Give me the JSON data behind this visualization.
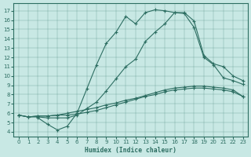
{
  "xlabel": "Humidex (Indice chaleur)",
  "bg_color": "#c8e8e4",
  "line_color": "#2d6e62",
  "grid_color": "#a0c8c0",
  "xlim": [
    -0.5,
    23.5
  ],
  "ylim": [
    3.5,
    17.8
  ],
  "xticks": [
    0,
    1,
    2,
    3,
    4,
    5,
    6,
    7,
    8,
    9,
    10,
    11,
    12,
    13,
    14,
    15,
    16,
    17,
    18,
    19,
    20,
    21,
    22,
    23
  ],
  "yticks": [
    4,
    5,
    6,
    7,
    8,
    9,
    10,
    11,
    12,
    13,
    14,
    15,
    16,
    17
  ],
  "curve_upper_x": [
    2,
    3,
    4,
    5,
    6,
    7,
    8,
    9,
    10,
    11,
    12,
    13,
    14,
    15,
    16,
    17,
    18,
    19,
    20,
    21,
    22,
    23
  ],
  "curve_upper_y": [
    5.5,
    4.8,
    4.2,
    4.6,
    6.0,
    8.6,
    11.2,
    13.5,
    14.7,
    16.4,
    15.6,
    16.8,
    17.1,
    17.0,
    16.8,
    16.7,
    15.2,
    12.0,
    11.2,
    9.8,
    9.5,
    9.1
  ],
  "curve_mid_x": [
    0,
    1,
    2,
    3,
    4,
    5,
    6,
    7,
    8,
    9,
    10,
    11,
    12,
    13,
    14,
    15,
    16,
    17,
    18,
    19,
    20,
    21,
    22,
    23
  ],
  "curve_mid_y": [
    5.8,
    5.6,
    5.6,
    5.5,
    5.5,
    5.5,
    5.8,
    6.5,
    7.2,
    8.4,
    9.7,
    11.0,
    11.8,
    13.7,
    14.7,
    15.6,
    16.8,
    16.8,
    15.9,
    12.2,
    11.3,
    11.0,
    10.0,
    9.5
  ],
  "curve_low1_x": [
    0,
    1,
    2,
    3,
    4,
    5,
    6,
    7,
    8,
    9,
    10,
    11,
    12,
    13,
    14,
    15,
    16,
    17,
    18,
    19,
    20,
    21,
    22,
    23
  ],
  "curve_low1_y": [
    5.8,
    5.6,
    5.7,
    5.7,
    5.8,
    6.0,
    6.2,
    6.4,
    6.6,
    6.9,
    7.1,
    7.4,
    7.6,
    7.9,
    8.2,
    8.5,
    8.7,
    8.8,
    8.9,
    8.9,
    8.8,
    8.7,
    8.5,
    7.8
  ],
  "curve_low2_x": [
    0,
    1,
    2,
    3,
    4,
    5,
    6,
    7,
    8,
    9,
    10,
    11,
    12,
    13,
    14,
    15,
    16,
    17,
    18,
    19,
    20,
    21,
    22,
    23
  ],
  "curve_low2_y": [
    5.8,
    5.6,
    5.7,
    5.7,
    5.8,
    5.8,
    5.9,
    6.1,
    6.3,
    6.6,
    6.9,
    7.2,
    7.5,
    7.8,
    8.0,
    8.3,
    8.5,
    8.6,
    8.7,
    8.7,
    8.6,
    8.5,
    8.3,
    7.8
  ]
}
